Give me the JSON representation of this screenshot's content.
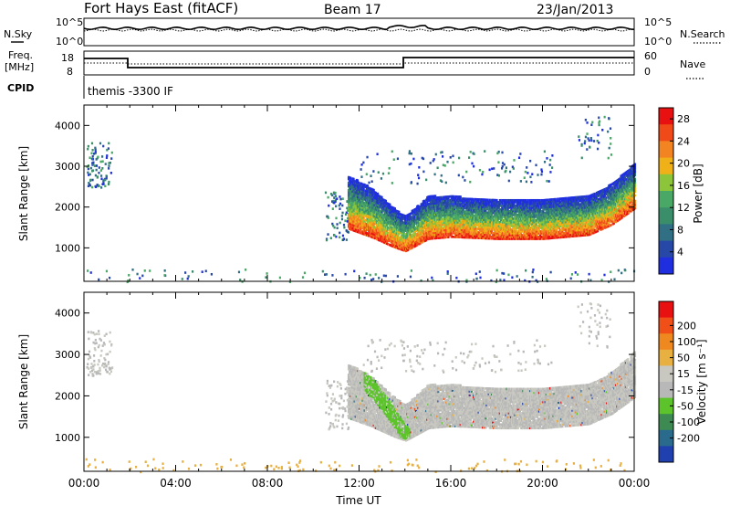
{
  "header": {
    "station": "Fort Hays East (fitACF)",
    "beam": "Beam 17",
    "date": "23/Jan/2013"
  },
  "top_panels": {
    "nsky_label": "N.Sky",
    "nsearch_label": "N.Search",
    "freq_label_1": "Freq.",
    "freq_label_2": "[MHz]",
    "nave_label": "Nave",
    "cpid_label": "CPID",
    "cpid_value": "themis -3300 IF",
    "noise_left_ticks": [
      "10^5",
      "10^0"
    ],
    "noise_right_ticks": [
      "10^5",
      "10^0"
    ],
    "freq_left_ticks": [
      "18",
      "8"
    ],
    "nave_right_ticks": [
      "60",
      "0"
    ]
  },
  "colors": {
    "power_scale": [
      "#1f2fe0",
      "#2848a8",
      "#306f84",
      "#3a8f6a",
      "#49a866",
      "#8cc43a",
      "#f0b018",
      "#f28522",
      "#f04a18",
      "#e81010"
    ],
    "velocity_scale": [
      "#2040b0",
      "#2a6a8c",
      "#3d8a52",
      "#5cc42a",
      "#b8b8b8",
      "#c8c8c0",
      "#e8b040",
      "#f08820",
      "#f05018",
      "#e81010"
    ],
    "ground_scatter": "#b0b0b0"
  },
  "chart_data": [
    {
      "type": "heatmap",
      "panel": "power",
      "xlabel": "",
      "ylabel": "Slant Range [km]",
      "xlim": [
        "00:00",
        "24:00"
      ],
      "ylim": [
        180,
        4500
      ],
      "yticks": [
        "1000",
        "2000",
        "3000",
        "4000"
      ],
      "colorbar": {
        "label": "Power [dB]",
        "ticks": [
          "4",
          "8",
          "12",
          "16",
          "20",
          "24",
          "28"
        ],
        "range": [
          0,
          30
        ]
      },
      "features": [
        {
          "desc": "main scatter band",
          "x_start_hr": 11.5,
          "x_end_hr": 24,
          "lower_edge_km": [
            [
              11.5,
              1500
            ],
            [
              12.5,
              1300
            ],
            [
              13.5,
              1050
            ],
            [
              14,
              950
            ],
            [
              15,
              1250
            ],
            [
              16,
              1300
            ],
            [
              18,
              1250
            ],
            [
              20,
              1250
            ],
            [
              22,
              1350
            ],
            [
              23,
              1600
            ],
            [
              24,
              2000
            ]
          ],
          "upper_edge_km": [
            [
              11.5,
              2800
            ],
            [
              12.5,
              2500
            ],
            [
              13.5,
              2000
            ],
            [
              14,
              1800
            ],
            [
              15,
              2300
            ],
            [
              16,
              2300
            ],
            [
              18,
              2200
            ],
            [
              20,
              2200
            ],
            [
              22,
              2300
            ],
            [
              23,
              2600
            ],
            [
              24,
              3100
            ]
          ]
        }
      ]
    },
    {
      "type": "heatmap",
      "panel": "velocity",
      "xlabel": "Time UT",
      "ylabel": "Slant Range [km]",
      "xlim": [
        "00:00",
        "24:00"
      ],
      "ylim": [
        180,
        4500
      ],
      "xticks": [
        "00:00",
        "04:00",
        "08:00",
        "12:00",
        "16:00",
        "20:00",
        "00:00"
      ],
      "yticks": [
        "1000",
        "2000",
        "3000",
        "4000"
      ],
      "colorbar": {
        "label": "Velocity [m s⁻¹]",
        "ticks": [
          "200",
          "100",
          "50",
          "15",
          "-15",
          "-50",
          "-100",
          "-200"
        ],
        "range": [
          -250,
          250
        ]
      }
    }
  ]
}
